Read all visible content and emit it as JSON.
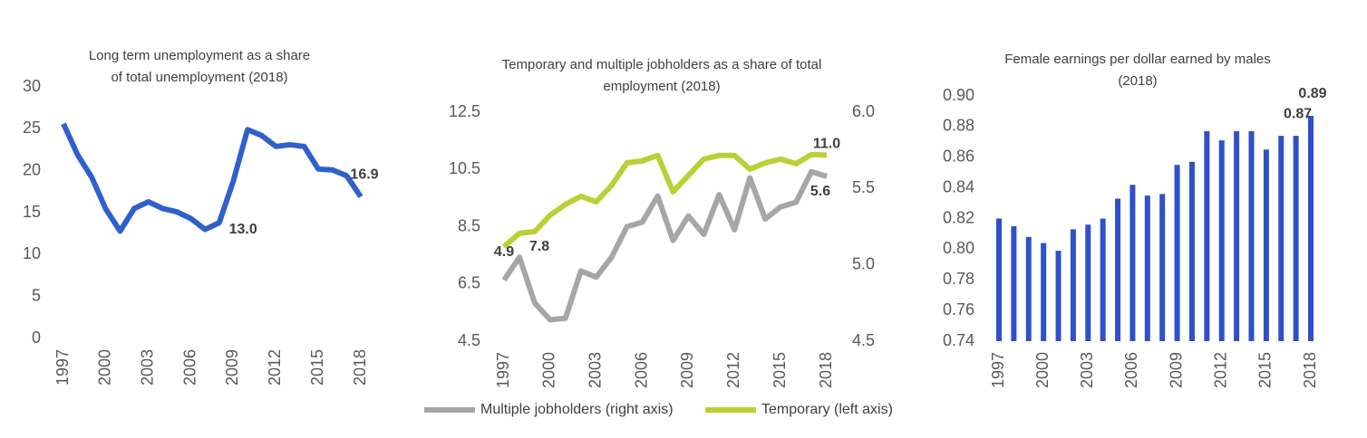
{
  "chart_data": [
    {
      "type": "line",
      "title": [
        "Long term unemployment as a share",
        "of total unemployment (2018)"
      ],
      "x": [
        1997,
        1998,
        1999,
        2000,
        2001,
        2002,
        2003,
        2004,
        2005,
        2006,
        2007,
        2008,
        2009,
        2010,
        2011,
        2012,
        2013,
        2014,
        2015,
        2016,
        2017,
        2018
      ],
      "values": [
        25.6,
        21.9,
        19.2,
        15.4,
        12.8,
        15.5,
        16.3,
        15.5,
        15.1,
        14.3,
        13.0,
        13.8,
        18.8,
        24.9,
        24.2,
        22.9,
        23.1,
        22.9,
        20.2,
        20.1,
        19.4,
        16.9
      ],
      "value_labels": [
        null,
        null,
        null,
        null,
        null,
        null,
        null,
        null,
        null,
        null,
        "13.0",
        null,
        null,
        null,
        null,
        null,
        null,
        null,
        null,
        null,
        null,
        "16.9"
      ],
      "color": "#3060cc",
      "xlim": [
        1997,
        2018
      ],
      "xticks": [
        1997,
        2000,
        2003,
        2006,
        2009,
        2012,
        2015,
        2018
      ],
      "ylim": [
        0,
        30
      ],
      "yticks": [
        0,
        5,
        10,
        15,
        20,
        25,
        30
      ]
    },
    {
      "type": "line",
      "title": [
        "Temporary and multiple jobholders as a share of total",
        "employment (2018)"
      ],
      "x": [
        1997,
        1998,
        1999,
        2000,
        2001,
        2002,
        2003,
        2004,
        2005,
        2006,
        2007,
        2008,
        2009,
        2010,
        2011,
        2012,
        2013,
        2014,
        2015,
        2016,
        2017,
        2018
      ],
      "series": [
        {
          "name": "Multiple jobholders (right axis)",
          "color": "#a6a6a6",
          "axis": "y2",
          "values": [
            4.9,
            5.05,
            4.75,
            4.64,
            4.65,
            4.96,
            4.92,
            5.05,
            5.25,
            5.28,
            5.45,
            5.16,
            5.32,
            5.2,
            5.46,
            5.23,
            5.57,
            5.3,
            5.38,
            5.41,
            5.61,
            5.58
          ],
          "value_labels": [
            "4.9",
            null,
            null,
            null,
            null,
            null,
            null,
            null,
            null,
            null,
            null,
            null,
            null,
            null,
            null,
            null,
            null,
            null,
            null,
            null,
            null,
            "5.6"
          ]
        },
        {
          "name": "Temporary (left axis)",
          "color": "#b5d334",
          "values": [
            7.8,
            8.27,
            8.33,
            8.9,
            9.28,
            9.56,
            9.37,
            9.94,
            10.73,
            10.8,
            10.99,
            9.72,
            10.29,
            10.86,
            10.99,
            10.99,
            10.51,
            10.73,
            10.86,
            10.7,
            11.02,
            11.0
          ],
          "value_labels": [
            "7.8",
            null,
            null,
            null,
            null,
            null,
            null,
            null,
            null,
            null,
            null,
            null,
            null,
            null,
            null,
            null,
            null,
            null,
            null,
            null,
            null,
            "11.0"
          ]
        }
      ],
      "xlim": [
        1997,
        2018
      ],
      "xticks": [
        1997,
        2000,
        2003,
        2006,
        2009,
        2012,
        2015,
        2018
      ],
      "ylim": [
        4.5,
        12.5
      ],
      "yticks": [
        4.5,
        6.5,
        8.5,
        10.5,
        12.5
      ],
      "y2lim": [
        4.5,
        6.0
      ],
      "y2ticks": [
        4.5,
        {
          "value": 5.0,
          "label": "5.0"
        },
        5.5,
        {
          "value": 6.0,
          "label": "6.0"
        }
      ]
    },
    {
      "type": "bar",
      "title": [
        "Female earnings per dollar earned by males",
        "(2018)"
      ],
      "x": [
        1997,
        1998,
        1999,
        2000,
        2001,
        2002,
        2003,
        2004,
        2005,
        2006,
        2007,
        2008,
        2009,
        2010,
        2011,
        2012,
        2013,
        2014,
        2015,
        2016,
        2017,
        2018
      ],
      "values": [
        0.82,
        0.815,
        0.808,
        0.804,
        0.799,
        0.813,
        0.816,
        0.82,
        0.833,
        0.842,
        0.835,
        0.836,
        0.855,
        0.857,
        0.877,
        0.871,
        0.877,
        0.877,
        0.865,
        0.874,
        0.874,
        0.887
      ],
      "value_labels": [
        null,
        null,
        null,
        null,
        null,
        null,
        null,
        null,
        null,
        null,
        null,
        null,
        null,
        null,
        null,
        null,
        null,
        null,
        null,
        null,
        "0.87",
        "0.89"
      ],
      "color": "#2f50c8",
      "xlim": [
        1997,
        2018
      ],
      "xticks": [
        1997,
        2000,
        2003,
        2006,
        2009,
        2012,
        2015,
        2018
      ],
      "ylim": [
        0.74,
        0.9
      ],
      "yticks": [
        0.74,
        0.76,
        0.78,
        {
          "value": 0.8,
          "label": "0.80"
        },
        0.82,
        0.84,
        0.86,
        0.88,
        {
          "value": 0.9,
          "label": "0.90"
        }
      ]
    }
  ]
}
